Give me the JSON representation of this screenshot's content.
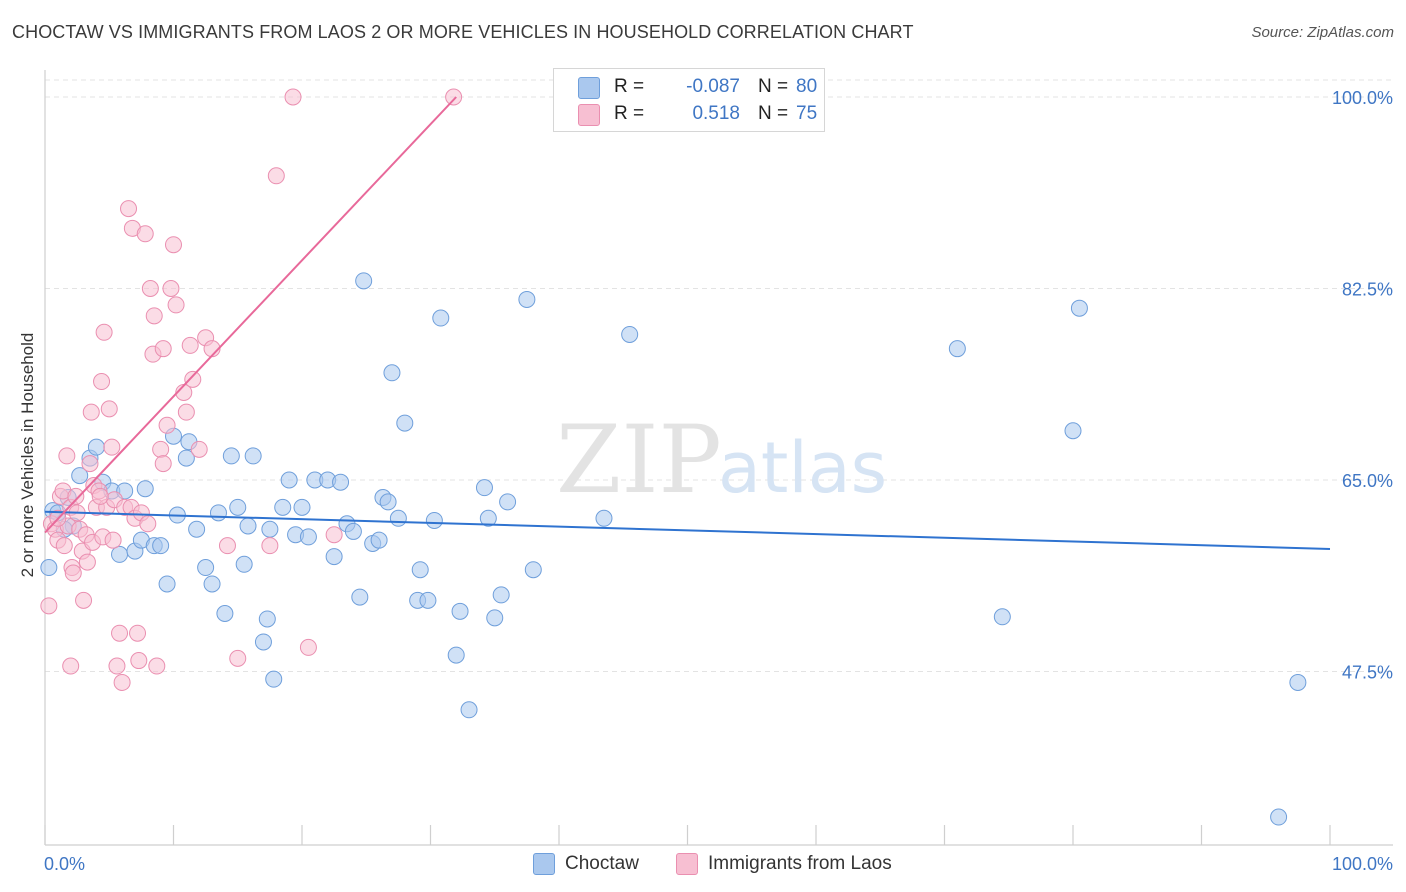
{
  "title": "CHOCTAW VS IMMIGRANTS FROM LAOS 2 OR MORE VEHICLES IN HOUSEHOLD CORRELATION CHART",
  "source": "Source: ZipAtlas.com",
  "watermark": {
    "zip": "ZIP",
    "atlas": "atlas"
  },
  "colors": {
    "blue_fill": "#aac8ee",
    "blue_stroke": "#6f9fdb",
    "blue_line": "#2f73d0",
    "pink_fill": "#f7bfd2",
    "pink_stroke": "#ea8fb0",
    "pink_line": "#e8699a",
    "tick_text": "#3f76c4",
    "grid": "#e3e3e3"
  },
  "legend": {
    "rows": [
      {
        "r_label": "R =",
        "r_value": "-0.087",
        "n_label": "N =",
        "n_value": "80"
      },
      {
        "r_label": "R =",
        "r_value": "0.518",
        "n_label": "N =",
        "n_value": "75"
      }
    ]
  },
  "bottom_legend": {
    "series1": "Choctaw",
    "series2": "Immigrants from Laos"
  },
  "chart_data": {
    "type": "scatter",
    "xlabel": "",
    "ylabel": "2 or more Vehicles in Household",
    "xlim": [
      0,
      100
    ],
    "ylim": [
      30.5,
      102.5
    ],
    "x_tick_labels": [
      {
        "value": 0,
        "label": "0.0%"
      },
      {
        "value": 100,
        "label": "100.0%"
      }
    ],
    "y_tick_labels": [
      {
        "value": 100,
        "label": "100.0%"
      },
      {
        "value": 82.5,
        "label": "82.5%"
      },
      {
        "value": 65,
        "label": "65.0%"
      },
      {
        "value": 47.5,
        "label": "47.5%"
      }
    ],
    "x_minor_ticks": [
      0,
      10,
      20,
      30,
      40,
      50,
      60,
      70,
      80,
      90,
      100
    ],
    "grid": true,
    "series": [
      {
        "name": "Choctaw",
        "color": "#aac8ee",
        "trend": {
          "x0": 0,
          "y0": 62.1,
          "x1": 100,
          "y1": 58.7
        },
        "points": [
          [
            0.3,
            57.0
          ],
          [
            0.6,
            62.2
          ],
          [
            1.0,
            62.0
          ],
          [
            1.8,
            63.4
          ],
          [
            2.2,
            60.8
          ],
          [
            2.7,
            65.4
          ],
          [
            3.5,
            67.0
          ],
          [
            4.0,
            68.0
          ],
          [
            4.5,
            64.8
          ],
          [
            5.2,
            64.0
          ],
          [
            5.8,
            58.2
          ],
          [
            6.2,
            64.0
          ],
          [
            7.0,
            58.5
          ],
          [
            7.5,
            59.5
          ],
          [
            7.8,
            64.2
          ],
          [
            8.5,
            59.0
          ],
          [
            9.0,
            59.0
          ],
          [
            9.5,
            55.5
          ],
          [
            10.0,
            69.0
          ],
          [
            10.3,
            61.8
          ],
          [
            11.0,
            67.0
          ],
          [
            11.2,
            68.5
          ],
          [
            11.8,
            60.5
          ],
          [
            12.5,
            57.0
          ],
          [
            13.0,
            55.5
          ],
          [
            13.5,
            62.0
          ],
          [
            14.0,
            52.8
          ],
          [
            14.5,
            67.2
          ],
          [
            15.0,
            62.5
          ],
          [
            15.5,
            57.3
          ],
          [
            15.8,
            60.8
          ],
          [
            16.2,
            67.2
          ],
          [
            17.0,
            50.2
          ],
          [
            17.3,
            52.3
          ],
          [
            17.5,
            60.5
          ],
          [
            17.8,
            46.8
          ],
          [
            18.5,
            62.5
          ],
          [
            19.0,
            65.0
          ],
          [
            19.5,
            60.0
          ],
          [
            20.0,
            62.5
          ],
          [
            20.5,
            59.8
          ],
          [
            21.0,
            65.0
          ],
          [
            22.0,
            65.0
          ],
          [
            22.5,
            58.0
          ],
          [
            23.0,
            64.8
          ],
          [
            23.5,
            61.0
          ],
          [
            24.0,
            60.3
          ],
          [
            24.5,
            54.3
          ],
          [
            24.8,
            83.2
          ],
          [
            25.5,
            59.2
          ],
          [
            26.0,
            59.5
          ],
          [
            26.3,
            63.4
          ],
          [
            26.7,
            63.0
          ],
          [
            27.0,
            74.8
          ],
          [
            27.5,
            61.5
          ],
          [
            28.0,
            70.2
          ],
          [
            29.0,
            54.0
          ],
          [
            29.2,
            56.8
          ],
          [
            29.8,
            54.0
          ],
          [
            30.3,
            61.3
          ],
          [
            30.8,
            79.8
          ],
          [
            32.0,
            49.0
          ],
          [
            32.3,
            53.0
          ],
          [
            33.0,
            44.0
          ],
          [
            34.2,
            64.3
          ],
          [
            34.5,
            61.5
          ],
          [
            35.0,
            52.4
          ],
          [
            35.5,
            54.5
          ],
          [
            36.0,
            63.0
          ],
          [
            37.5,
            81.5
          ],
          [
            38.0,
            56.8
          ],
          [
            43.5,
            61.5
          ],
          [
            45.5,
            78.3
          ],
          [
            71.0,
            77.0
          ],
          [
            74.5,
            52.5
          ],
          [
            80.0,
            69.5
          ],
          [
            80.5,
            80.7
          ],
          [
            97.5,
            46.5
          ],
          [
            96.0,
            34.2
          ],
          [
            1.5,
            60.5
          ]
        ]
      },
      {
        "name": "Immigrants from Laos",
        "color": "#f7bfd2",
        "trend": {
          "x0": 0,
          "y0": 60.2,
          "x1": 32,
          "y1": 100.0
        },
        "points": [
          [
            0.3,
            53.5
          ],
          [
            0.5,
            61.0
          ],
          [
            0.8,
            60.5
          ],
          [
            1.0,
            59.5
          ],
          [
            1.2,
            63.5
          ],
          [
            1.4,
            64.0
          ],
          [
            1.5,
            59.0
          ],
          [
            1.7,
            67.2
          ],
          [
            1.8,
            60.8
          ],
          [
            2.0,
            62.5
          ],
          [
            2.1,
            57.0
          ],
          [
            2.2,
            56.5
          ],
          [
            2.4,
            63.5
          ],
          [
            2.5,
            62.0
          ],
          [
            2.7,
            60.5
          ],
          [
            2.9,
            58.5
          ],
          [
            3.0,
            54.0
          ],
          [
            3.2,
            60.0
          ],
          [
            3.3,
            57.5
          ],
          [
            3.5,
            66.5
          ],
          [
            3.7,
            59.3
          ],
          [
            3.8,
            64.5
          ],
          [
            4.0,
            62.5
          ],
          [
            4.2,
            64.0
          ],
          [
            3.6,
            71.2
          ],
          [
            4.4,
            74.0
          ],
          [
            4.5,
            59.8
          ],
          [
            4.6,
            78.5
          ],
          [
            4.8,
            62.5
          ],
          [
            5.0,
            71.5
          ],
          [
            5.2,
            68.0
          ],
          [
            5.4,
            63.2
          ],
          [
            5.6,
            48.0
          ],
          [
            5.8,
            51.0
          ],
          [
            6.0,
            46.5
          ],
          [
            6.2,
            62.5
          ],
          [
            6.5,
            89.8
          ],
          [
            6.7,
            62.5
          ],
          [
            6.8,
            88.0
          ],
          [
            7.0,
            61.5
          ],
          [
            7.2,
            51.0
          ],
          [
            7.5,
            62.0
          ],
          [
            7.8,
            87.5
          ],
          [
            8.0,
            61.0
          ],
          [
            8.2,
            82.5
          ],
          [
            8.4,
            76.5
          ],
          [
            8.5,
            80.0
          ],
          [
            8.7,
            48.0
          ],
          [
            9.0,
            67.8
          ],
          [
            9.2,
            77.0
          ],
          [
            9.5,
            70.0
          ],
          [
            9.8,
            82.5
          ],
          [
            10.0,
            86.5
          ],
          [
            10.2,
            81.0
          ],
          [
            10.8,
            73.0
          ],
          [
            11.0,
            71.2
          ],
          [
            11.3,
            77.3
          ],
          [
            11.5,
            74.2
          ],
          [
            12.0,
            67.8
          ],
          [
            12.5,
            78.0
          ],
          [
            13.0,
            77.0
          ],
          [
            14.2,
            59.0
          ],
          [
            15.0,
            48.7
          ],
          [
            17.5,
            59.0
          ],
          [
            18.0,
            92.8
          ],
          [
            19.3,
            100.0
          ],
          [
            20.5,
            49.7
          ],
          [
            22.5,
            60.0
          ],
          [
            31.8,
            100.0
          ],
          [
            5.3,
            59.5
          ],
          [
            2.0,
            48.0
          ],
          [
            1.0,
            61.5
          ],
          [
            7.3,
            48.5
          ],
          [
            9.2,
            66.5
          ],
          [
            4.3,
            63.5
          ]
        ]
      }
    ]
  }
}
